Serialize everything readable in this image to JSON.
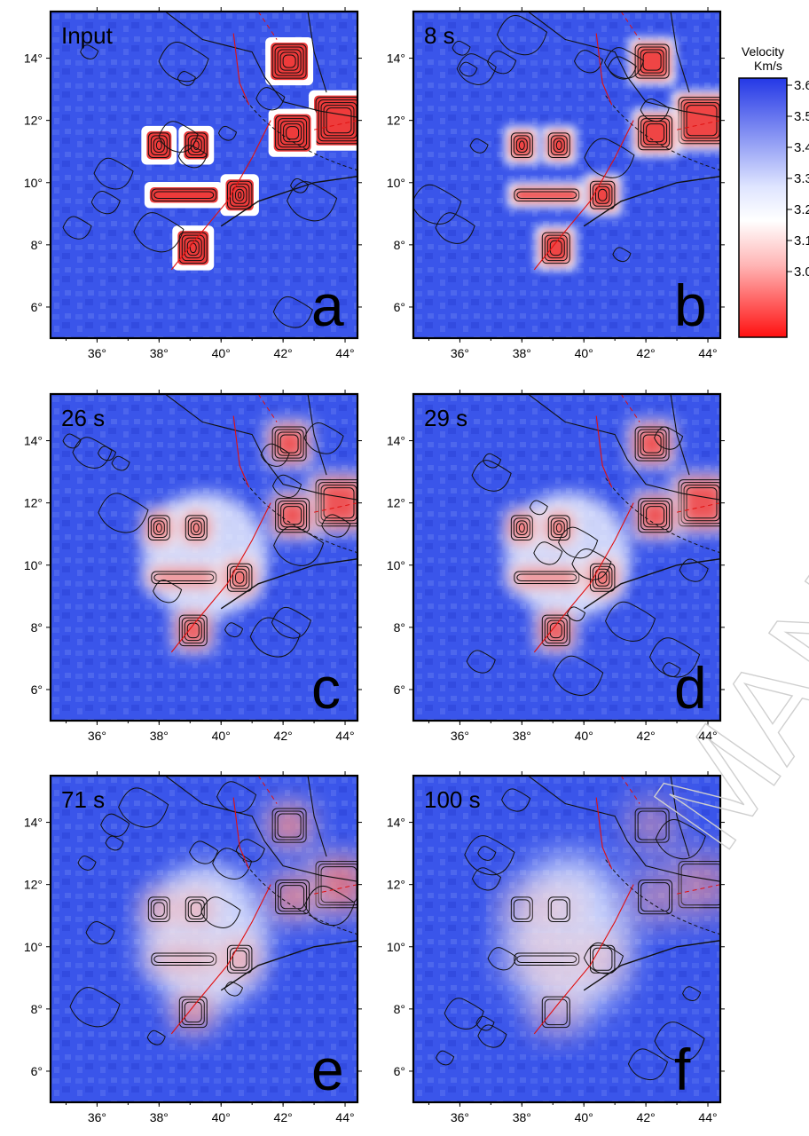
{
  "figure": {
    "x_ticks": [
      "36°",
      "38°",
      "40°",
      "42°",
      "44°"
    ],
    "y_ticks": [
      "6°",
      "8°",
      "10°",
      "12°",
      "14°"
    ],
    "panels": [
      {
        "letter": "a",
        "time": "Input",
        "blur": 0.3,
        "strength": 1.0,
        "contours": 5
      },
      {
        "letter": "b",
        "time": "8 s",
        "blur": 5,
        "strength": 0.95,
        "contours": 4
      },
      {
        "letter": "c",
        "time": "26 s",
        "blur": 9,
        "strength": 0.85,
        "contours": 4
      },
      {
        "letter": "d",
        "time": "29 s",
        "blur": 9,
        "strength": 0.85,
        "contours": 4
      },
      {
        "letter": "e",
        "time": "71 s",
        "blur": 15,
        "strength": 0.6,
        "contours": 3
      },
      {
        "letter": "f",
        "time": "100 s",
        "blur": 20,
        "strength": 0.45,
        "contours": 2
      }
    ]
  },
  "colorbar": {
    "title_line1": "Velocity",
    "title_line2": "Km/s",
    "labels": [
      "3.6",
      "3.5",
      "3.4",
      "3.3",
      "3.2",
      "3.1",
      "3.0"
    ],
    "colors": {
      "high": "#2b3ee0",
      "mid": "#ffffff",
      "low": "#ff1414"
    }
  },
  "watermark": {
    "text": "MAN"
  }
}
